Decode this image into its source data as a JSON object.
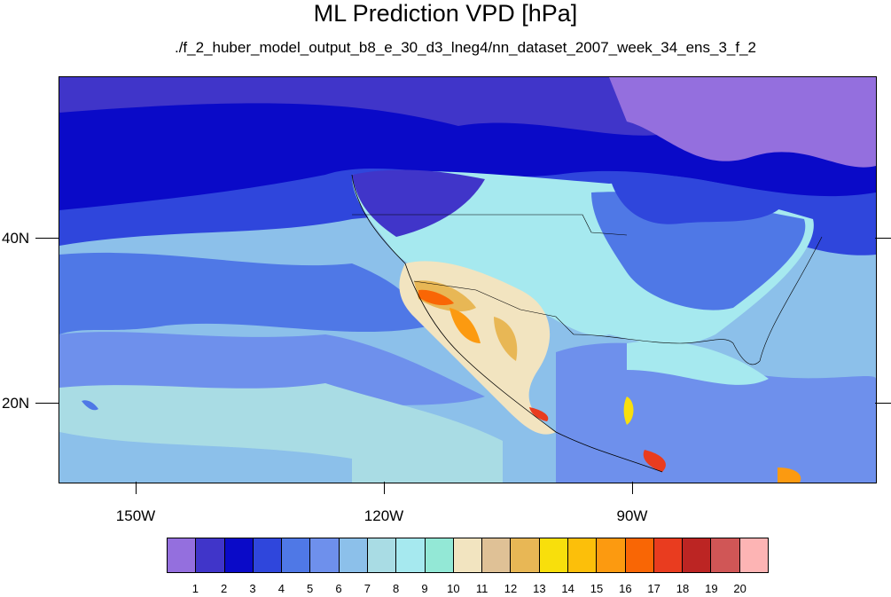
{
  "title": "ML Prediction VPD [hPa]",
  "subtitle": "./f_2_huber_model_output_b8_e_30_d3_lneg4/nn_dataset_2007_week_34_ens_3_f_2",
  "axes": {
    "lat_labels": [
      "40N",
      "20N"
    ],
    "lon_labels": [
      "150W",
      "120W",
      "90W"
    ]
  },
  "colorbar": {
    "labels": [
      "1",
      "2",
      "3",
      "4",
      "5",
      "6",
      "7",
      "8",
      "9",
      "10",
      "11",
      "12",
      "13",
      "14",
      "15",
      "16",
      "17",
      "18",
      "19",
      "20"
    ],
    "colors": [
      "#946fde",
      "#4035c9",
      "#0a0ac8",
      "#2f46dc",
      "#4f78e6",
      "#6e90ec",
      "#8cc0ea",
      "#a9dce4",
      "#a6e9ef",
      "#93e8d6",
      "#f2e4c0",
      "#dfc196",
      "#e8b755",
      "#f8df0c",
      "#fcbf0a",
      "#fc9a10",
      "#f96605",
      "#e93c1f",
      "#bc2523",
      "#d05656",
      "#fdb4b4"
    ]
  },
  "map": {
    "region": "North America / Central America / Eastern Pacific",
    "colors": {
      "ocean_north": "#0a0ac8",
      "ocean_mid": "#2f46dc",
      "ocean_south": "#8cc0ea",
      "pacific_tropic": "#a9dce4",
      "land_east_us": "#a6e9ef",
      "hot_desert": "#f96605",
      "very_hot": "#e93c1f"
    }
  }
}
